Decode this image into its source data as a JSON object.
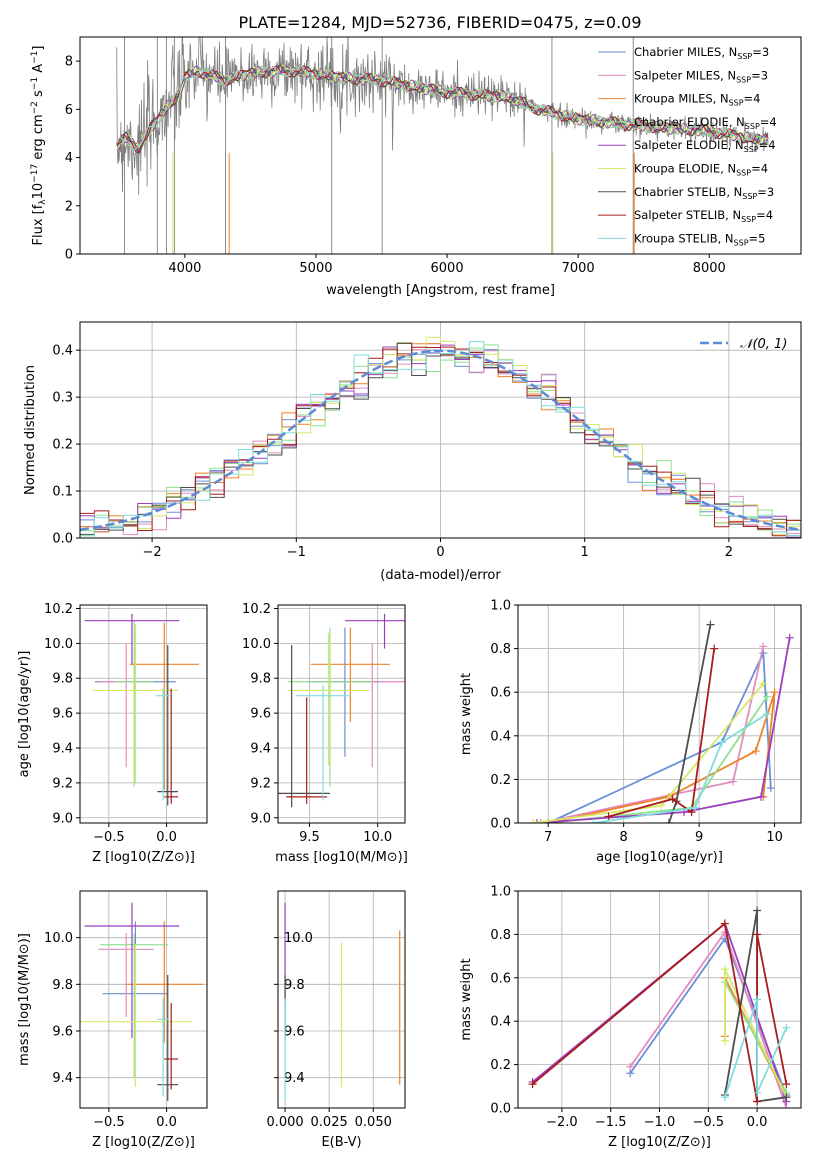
{
  "figure_title": "PLATE=1284, MJD=52736, FIBERID=0475, z=0.09",
  "colors": {
    "Chabrier MILES": "#6a8fd6",
    "Salpeter MILES": "#e48cbf",
    "Kroupa MILES": "#f0822a",
    "Chabrier ELODIE": "#8ee08e",
    "Salpeter ELODIE": "#9b3fbd",
    "Kroupa ELODIE": "#d6e86a",
    "Chabrier STELIB": "#4d4d4d",
    "Salpeter STELIB": "#a81c1c",
    "Kroupa STELIB": "#80dcdc",
    "data": "#808080",
    "gaussian": "#5b8bd6"
  },
  "chart_data": [
    {
      "id": "spectrum",
      "type": "line",
      "xlabel": "wavelength [Angstrom, rest frame]",
      "ylabel": "Flux [f_λ 10^-17 erg cm^-2 s^-1 A^-1]",
      "xlim": [
        3200,
        8700
      ],
      "ylim": [
        0,
        9
      ],
      "xticks": [
        4000,
        5000,
        6000,
        7000,
        8000
      ],
      "yticks": [
        0,
        2,
        4,
        6,
        8
      ],
      "grid": false,
      "legend_position": "right",
      "legend": [
        {
          "label": "Chabrier MILES, N_SSP=3",
          "model": "Chabrier MILES"
        },
        {
          "label": "Salpeter MILES, N_SSP=3",
          "model": "Salpeter MILES"
        },
        {
          "label": "Kroupa MILES, N_SSP=4",
          "model": "Kroupa MILES"
        },
        {
          "label": "Chabrier ELODIE, N_SSP=4",
          "model": "Chabrier ELODIE"
        },
        {
          "label": "Salpeter ELODIE, N_SSP=4",
          "model": "Salpeter ELODIE"
        },
        {
          "label": "Kroupa ELODIE, N_SSP=4",
          "model": "Kroupa ELODIE"
        },
        {
          "label": "Chabrier STELIB, N_SSP=3",
          "model": "Chabrier STELIB"
        },
        {
          "label": "Salpeter STELIB, N_SSP=4",
          "model": "Salpeter STELIB"
        },
        {
          "label": "Kroupa STELIB, N_SSP=5",
          "model": "Kroupa STELIB"
        }
      ],
      "continuum": [
        [
          3480,
          4.5
        ],
        [
          3550,
          4.8
        ],
        [
          3650,
          4.4
        ],
        [
          3750,
          5.3
        ],
        [
          3850,
          6.0
        ],
        [
          3950,
          6.6
        ],
        [
          4000,
          7.3
        ],
        [
          4100,
          7.6
        ],
        [
          4300,
          7.2
        ],
        [
          4500,
          7.5
        ],
        [
          4800,
          7.6
        ],
        [
          5000,
          7.5
        ],
        [
          5200,
          7.3
        ],
        [
          5500,
          7.2
        ],
        [
          6000,
          6.7
        ],
        [
          6500,
          6.5
        ],
        [
          6560,
          6.3
        ],
        [
          6700,
          6.0
        ],
        [
          7000,
          5.6
        ],
        [
          7500,
          5.3
        ],
        [
          8000,
          5.1
        ],
        [
          8300,
          4.8
        ],
        [
          8450,
          4.75
        ]
      ]
    },
    {
      "id": "residuals",
      "type": "histogram",
      "xlabel": "(data-model)/error",
      "ylabel": "Normed distribution",
      "xlim": [
        -2.5,
        2.5
      ],
      "ylim": [
        0,
        0.46
      ],
      "xticks": [
        -2,
        -1,
        0,
        1,
        2
      ],
      "yticks": [
        0.0,
        0.1,
        0.2,
        0.3,
        0.4
      ],
      "grid": true,
      "legend": [
        "𝒩(0, 1)"
      ],
      "legend_position": "top-right",
      "bin_width": 0.1
    },
    {
      "id": "age-vs-Z",
      "type": "errorbar",
      "xlabel": "Z [log10(Z/Z⊙)]",
      "ylabel": "age [log10(age/yr)]",
      "xlim": [
        -0.75,
        0.35
      ],
      "ylim": [
        8.97,
        10.22
      ],
      "xticks": [
        -0.5,
        0.0
      ],
      "yticks": [
        9.0,
        9.2,
        9.4,
        9.6,
        9.8,
        10.0,
        10.2
      ],
      "grid": true,
      "points": [
        {
          "model": "Chabrier MILES",
          "x": -0.27,
          "xerr": 0.7,
          "y": 9.78,
          "yerr": [
            9.35,
            10.07
          ]
        },
        {
          "model": "Salpeter MILES",
          "x": -0.35,
          "xerr": 0.48,
          "y": 9.78,
          "yerr": [
            9.29,
            10.0
          ]
        },
        {
          "model": "Kroupa MILES",
          "x": -0.02,
          "xerr": 0.6,
          "y": 9.88,
          "yerr": [
            9.16,
            10.12
          ]
        },
        {
          "model": "Chabrier ELODIE",
          "x": -0.28,
          "xerr": 0.34,
          "y": 9.78,
          "yerr": [
            9.18,
            10.13
          ]
        },
        {
          "model": "Salpeter ELODIE",
          "x": -0.3,
          "xerr": 0.82,
          "y": 10.13,
          "yerr": [
            9.88,
            10.17
          ]
        },
        {
          "model": "Kroupa ELODIE",
          "x": -0.27,
          "xerr": 0.74,
          "y": 9.73,
          "yerr": [
            9.2,
            10.11
          ]
        },
        {
          "model": "Chabrier STELIB",
          "x": 0.01,
          "xerr": 0.18,
          "y": 9.15,
          "yerr": [
            9.07,
            9.99
          ]
        },
        {
          "model": "Salpeter STELIB",
          "x": 0.04,
          "xerr": 0.12,
          "y": 9.12,
          "yerr": [
            9.08,
            9.74
          ]
        },
        {
          "model": "Kroupa STELIB",
          "x": -0.03,
          "xerr": 0.12,
          "y": 9.7,
          "yerr": [
            9.1,
            9.74
          ]
        }
      ]
    },
    {
      "id": "age-vs-mass",
      "type": "errorbar",
      "xlabel": "mass [log10(M/M⊙)]",
      "ylabel": "",
      "xlim": [
        9.27,
        10.2
      ],
      "ylim": [
        8.97,
        10.22
      ],
      "xticks": [
        9.5,
        10.0
      ],
      "yticks": [
        9.0,
        9.2,
        9.4,
        9.6,
        9.8,
        10.0,
        10.2
      ],
      "grid": true,
      "points": [
        {
          "model": "Chabrier MILES",
          "x": 9.76,
          "xerr": 0.57,
          "y": 9.78,
          "yerr": [
            9.35,
            10.09
          ]
        },
        {
          "model": "Salpeter MILES",
          "x": 9.96,
          "xerr": 0.6,
          "y": 9.78,
          "yerr": [
            9.29,
            10.0
          ]
        },
        {
          "model": "Kroupa MILES",
          "x": 9.8,
          "xerr": 0.58,
          "y": 9.88,
          "yerr": [
            9.55,
            10.09
          ]
        },
        {
          "model": "Chabrier ELODIE",
          "x": 9.65,
          "xerr": 0.62,
          "y": 9.78,
          "yerr": [
            9.18,
            10.09
          ]
        },
        {
          "model": "Salpeter ELODIE",
          "x": 10.05,
          "xerr": 0.58,
          "y": 10.13,
          "yerr": [
            9.97,
            10.17
          ]
        },
        {
          "model": "Kroupa ELODIE",
          "x": 9.64,
          "xerr": 0.6,
          "y": 9.73,
          "yerr": [
            9.3,
            10.06
          ]
        },
        {
          "model": "Chabrier STELIB",
          "x": 9.37,
          "xerr": 0.56,
          "y": 9.14,
          "yerr": [
            9.06,
            9.99
          ]
        },
        {
          "model": "Salpeter STELIB",
          "x": 9.48,
          "xerr": 0.3,
          "y": 9.12,
          "yerr": [
            9.08,
            9.69
          ]
        },
        {
          "model": "Kroupa STELIB",
          "x": 9.6,
          "xerr": 0.4,
          "y": 9.7,
          "yerr": [
            9.1,
            9.76
          ]
        }
      ]
    },
    {
      "id": "weight-vs-age",
      "type": "line",
      "xlabel": "age [log10(age/yr)]",
      "ylabel": "mass weight",
      "xlim": [
        6.6,
        10.35
      ],
      "ylim": [
        0,
        1.0
      ],
      "xticks": [
        7,
        8,
        9,
        10
      ],
      "yticks": [
        0.0,
        0.2,
        0.4,
        0.6,
        0.8,
        1.0
      ],
      "grid": true,
      "series": [
        {
          "model": "Chabrier MILES",
          "points": [
            [
              7.0,
              0.0
            ],
            [
              9.3,
              0.37
            ],
            [
              9.85,
              0.78
            ],
            [
              9.95,
              0.16
            ]
          ]
        },
        {
          "model": "Salpeter MILES",
          "points": [
            [
              6.9,
              0.0
            ],
            [
              9.45,
              0.19
            ],
            [
              9.85,
              0.81
            ]
          ]
        },
        {
          "model": "Kroupa MILES",
          "points": [
            [
              7.0,
              0.0
            ],
            [
              8.6,
              0.12
            ],
            [
              9.75,
              0.33
            ],
            [
              10.0,
              0.6
            ],
            [
              9.85,
              0.12
            ]
          ]
        },
        {
          "model": "Chabrier ELODIE",
          "points": [
            [
              7.0,
              0.0
            ],
            [
              8.9,
              0.07
            ],
            [
              9.9,
              0.58
            ]
          ]
        },
        {
          "model": "Salpeter ELODIE",
          "points": [
            [
              6.85,
              0.0
            ],
            [
              8.8,
              0.05
            ],
            [
              9.82,
              0.12
            ],
            [
              10.2,
              0.85
            ]
          ]
        },
        {
          "model": "Kroupa ELODIE",
          "points": [
            [
              6.8,
              0.0
            ],
            [
              8.5,
              0.08
            ],
            [
              9.85,
              0.64
            ]
          ]
        },
        {
          "model": "Chabrier STELIB",
          "points": [
            [
              8.6,
              0.0
            ],
            [
              8.7,
              0.1
            ],
            [
              9.15,
              0.91
            ]
          ]
        },
        {
          "model": "Salpeter STELIB",
          "points": [
            [
              7.8,
              0.03
            ],
            [
              8.65,
              0.11
            ],
            [
              8.9,
              0.05
            ],
            [
              9.2,
              0.8
            ]
          ]
        },
        {
          "model": "Kroupa STELIB",
          "points": [
            [
              7.6,
              0.0
            ],
            [
              8.95,
              0.07
            ],
            [
              9.3,
              0.37
            ],
            [
              9.9,
              0.5
            ]
          ]
        }
      ]
    },
    {
      "id": "mass-vs-Z",
      "type": "errorbar",
      "xlabel": "Z [log10(Z/Z⊙)]",
      "ylabel": "mass [log10(M/M⊙)]",
      "xlim": [
        -0.75,
        0.35
      ],
      "ylim": [
        9.27,
        10.2
      ],
      "xticks": [
        -0.5,
        0.0
      ],
      "yticks": [
        9.4,
        9.6,
        9.8,
        10.0
      ],
      "grid": true,
      "points": [
        {
          "model": "Chabrier MILES",
          "x": -0.27,
          "xerr": 0.57,
          "y": 9.76,
          "yerr": [
            9.4,
            10.07
          ]
        },
        {
          "model": "Salpeter MILES",
          "x": -0.35,
          "xerr": 0.48,
          "y": 9.95,
          "yerr": [
            9.66,
            10.02
          ]
        },
        {
          "model": "Kroupa MILES",
          "x": -0.02,
          "xerr": 0.66,
          "y": 9.8,
          "yerr": [
            9.55,
            10.07
          ]
        },
        {
          "model": "Chabrier ELODIE",
          "x": -0.28,
          "xerr": 0.59,
          "y": 9.97,
          "yerr": [
            9.4,
            10.02
          ]
        },
        {
          "model": "Salpeter ELODIE",
          "x": -0.3,
          "xerr": 0.82,
          "y": 10.05,
          "yerr": [
            9.57,
            10.15
          ]
        },
        {
          "model": "Kroupa ELODIE",
          "x": -0.27,
          "xerr": 0.98,
          "y": 9.64,
          "yerr": [
            9.36,
            9.97
          ]
        },
        {
          "model": "Chabrier STELIB",
          "x": 0.01,
          "xerr": 0.18,
          "y": 9.37,
          "yerr": [
            9.3,
            9.84
          ]
        },
        {
          "model": "Salpeter STELIB",
          "x": 0.04,
          "xerr": 0.12,
          "y": 9.48,
          "yerr": [
            9.35,
            9.72
          ]
        },
        {
          "model": "Kroupa STELIB",
          "x": -0.03,
          "xerr": 0.1,
          "y": 9.65,
          "yerr": [
            9.32,
            9.74
          ]
        }
      ]
    },
    {
      "id": "mass-vs-ebv",
      "type": "errorbar",
      "xlabel": "E(B-V)",
      "ylabel": "",
      "xlim": [
        -0.004,
        0.068
      ],
      "ylim": [
        9.27,
        10.2
      ],
      "xticks": [
        0.0,
        0.025,
        0.05
      ],
      "ytick_labels": [
        "9.4",
        "9.6",
        "9.8",
        "10.0"
      ],
      "xtick_labels": [
        "0.000",
        "0.025",
        "0.050"
      ],
      "grid": true,
      "points": [
        {
          "model": "Salpeter ELODIE",
          "x": 0.0,
          "y": 10.0,
          "yerr": [
            9.72,
            10.15
          ]
        },
        {
          "model": "Chabrier STELIB",
          "x": 0.0,
          "y": 9.8,
          "yerr": [
            9.56,
            9.84
          ]
        },
        {
          "model": "Kroupa STELIB",
          "x": 0.0,
          "y": 9.5,
          "yerr": [
            9.3,
            9.74
          ]
        },
        {
          "model": "Kroupa ELODIE",
          "x": 0.032,
          "y": 9.6,
          "yerr": [
            9.36,
            9.98
          ]
        },
        {
          "model": "Kroupa MILES",
          "x": 0.065,
          "y": 9.8,
          "yerr": [
            9.37,
            10.03
          ]
        }
      ]
    },
    {
      "id": "weight-vs-Z",
      "type": "line",
      "xlabel": "Z [log10(Z/Z⊙)]",
      "ylabel": "mass weight",
      "xlim": [
        -2.45,
        0.45
      ],
      "ylim": [
        0,
        1.0
      ],
      "xticks": [
        -2.0,
        -1.5,
        -1.0,
        -0.5,
        0.0
      ],
      "yticks": [
        0.0,
        0.2,
        0.4,
        0.6,
        0.8,
        1.0
      ],
      "grid": true,
      "series": [
        {
          "model": "Chabrier MILES",
          "points": [
            [
              -1.3,
              0.16
            ],
            [
              -0.33,
              0.78
            ],
            [
              0.3,
              0.06
            ]
          ]
        },
        {
          "model": "Salpeter MILES",
          "points": [
            [
              -1.3,
              0.19
            ],
            [
              -0.33,
              0.81
            ],
            [
              0.3,
              0.0
            ]
          ]
        },
        {
          "model": "Kroupa MILES",
          "points": [
            [
              -0.33,
              0.33
            ],
            [
              -0.33,
              0.6
            ],
            [
              0.3,
              0.05
            ]
          ]
        },
        {
          "model": "Chabrier ELODIE",
          "points": [
            [
              -0.33,
              0.58
            ],
            [
              0.3,
              0.07
            ]
          ]
        },
        {
          "model": "Salpeter ELODIE",
          "points": [
            [
              -2.3,
              0.12
            ],
            [
              -0.33,
              0.85
            ],
            [
              0.3,
              0.03
            ]
          ]
        },
        {
          "model": "Kroupa ELODIE",
          "points": [
            [
              -0.33,
              0.31
            ],
            [
              -0.33,
              0.64
            ],
            [
              0.3,
              0.05
            ]
          ]
        },
        {
          "model": "Chabrier STELIB",
          "points": [
            [
              -0.33,
              0.06
            ],
            [
              0.0,
              0.91
            ],
            [
              0.0,
              0.03
            ],
            [
              0.3,
              0.05
            ]
          ]
        },
        {
          "model": "Salpeter STELIB",
          "points": [
            [
              -2.3,
              0.11
            ],
            [
              -0.33,
              0.85
            ],
            [
              0.0,
              0.03
            ],
            [
              0.0,
              0.8
            ],
            [
              0.3,
              0.11
            ]
          ]
        },
        {
          "model": "Kroupa STELIB",
          "points": [
            [
              -0.33,
              0.05
            ],
            [
              0.0,
              0.5
            ],
            [
              0.0,
              0.07
            ],
            [
              0.3,
              0.37
            ]
          ]
        }
      ]
    }
  ]
}
